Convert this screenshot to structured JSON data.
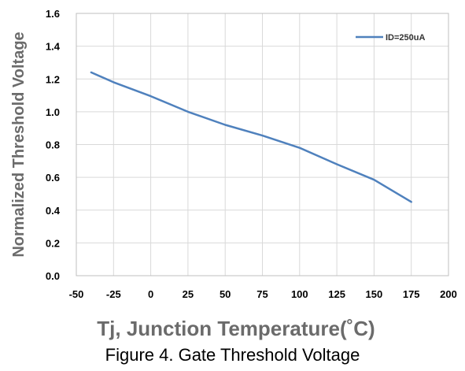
{
  "caption": "Figure 4. Gate Threshold Voltage",
  "chart_data": {
    "type": "line",
    "title": "",
    "xlabel": "Tj, Junction Temperature(˚C)",
    "ylabel": "Normalized Threshold Voltage",
    "xlim": [
      -50,
      200
    ],
    "ylim": [
      0.0,
      1.6
    ],
    "x_ticks": [
      -50,
      -25,
      0,
      25,
      50,
      75,
      100,
      125,
      150,
      175,
      200
    ],
    "x_tick_labels": [
      "-50",
      "-25",
      "0",
      "25",
      "50",
      "75",
      "100",
      "125",
      "150",
      "175",
      "200"
    ],
    "y_ticks": [
      0.0,
      0.2,
      0.4,
      0.6,
      0.8,
      1.0,
      1.2,
      1.4,
      1.6
    ],
    "y_tick_labels": [
      "0.0",
      "0.2",
      "0.4",
      "0.6",
      "0.8",
      "1.0",
      "1.2",
      "1.4",
      "1.6"
    ],
    "grid": true,
    "legend_position": "top-right",
    "series": [
      {
        "name": "ID=250uA",
        "color": "#4f81bd",
        "x": [
          -40,
          -25,
          0,
          25,
          50,
          75,
          100,
          125,
          150,
          175
        ],
        "y": [
          1.24,
          1.18,
          1.095,
          1.0,
          0.92,
          0.855,
          0.78,
          0.68,
          0.585,
          0.45
        ]
      }
    ]
  }
}
